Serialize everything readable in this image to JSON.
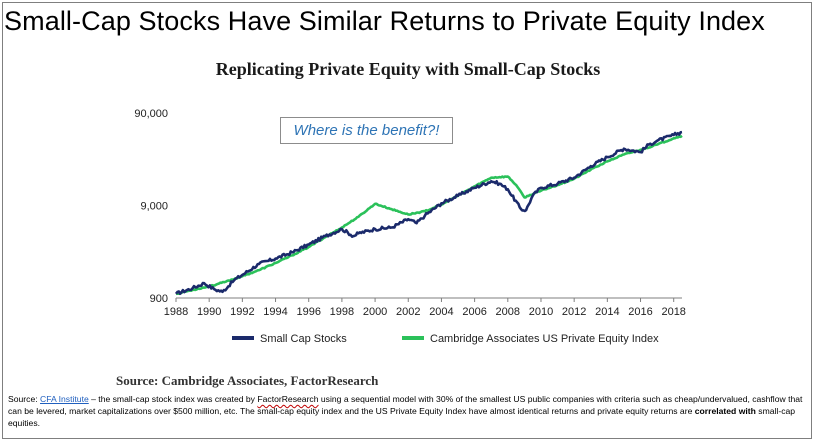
{
  "slide": {
    "title": "Small-Cap Stocks Have Similar Returns to Private Equity Index"
  },
  "callout": {
    "text": "Where is the benefit?!"
  },
  "source_line": "Source: Cambridge Associates, FactorResearch",
  "footnote": {
    "prefix": "Source: ",
    "link_text": "CFA Institute",
    "part1": " – the small-cap stock index was created by ",
    "factor_research": "FactorResearch",
    "part2": " using a sequential model with 30% of the smallest US public companies with criteria such as cheap/undervalued, cashflow that can be levered, market capitalizations over $500 million, etc. The small-cap equity index and the US Private Equity Index have almost identical returns and private equity returns are ",
    "bold_text": "correlated with",
    "part3": " small-cap equities."
  },
  "colors": {
    "small_cap": "#1b2a6b",
    "private_equity": "#2bc15a",
    "callout_text": "#2e74b5"
  },
  "chart_data": {
    "type": "line",
    "title": "Replicating Private Equity with Small-Cap Stocks",
    "xlabel": "",
    "ylabel": "",
    "y_scale": "log",
    "ylim": [
      900,
      90000
    ],
    "xlim": [
      1988,
      2018.5
    ],
    "y_ticks": [
      900,
      9000,
      90000
    ],
    "y_tick_labels": [
      "900",
      "9,000",
      "90,000"
    ],
    "x_ticks": [
      1988,
      1990,
      1992,
      1994,
      1996,
      1998,
      2000,
      2002,
      2004,
      2006,
      2008,
      2010,
      2012,
      2014,
      2016,
      2018
    ],
    "x_tick_labels": [
      "1988",
      "1990",
      "1992",
      "1994",
      "1996",
      "1998",
      "2000",
      "2002",
      "2004",
      "2006",
      "2008",
      "2010",
      "2012",
      "2014",
      "2016",
      "2018"
    ],
    "grid": false,
    "legend_position": "bottom",
    "series": [
      {
        "name": "Small Cap Stocks",
        "x": [
          1988,
          1989,
          1989.7,
          1990.3,
          1990.8,
          1991.5,
          1992,
          1993,
          1994,
          1995,
          1996,
          1997,
          1998,
          1998.7,
          1999,
          2000,
          2001,
          2002,
          2002.5,
          2003,
          2004,
          2005,
          2006,
          2007,
          2007.5,
          2008,
          2008.8,
          2009.1,
          2009.5,
          2010,
          2011,
          2012,
          2013,
          2014,
          2015,
          2016,
          2016.5,
          2017,
          2018,
          2018.5
        ],
        "values": [
          1000,
          1150,
          1300,
          1120,
          1050,
          1400,
          1600,
          2100,
          2400,
          2800,
          3400,
          4200,
          5000,
          4200,
          4500,
          5000,
          5200,
          6400,
          5800,
          7000,
          9500,
          11500,
          14000,
          16500,
          15500,
          13500,
          8200,
          8000,
          11500,
          14000,
          15500,
          18000,
          24000,
          30000,
          37000,
          34000,
          41000,
          45000,
          52000,
          56000
        ]
      },
      {
        "name": "Cambridge Associates US Private Equity Index",
        "x": [
          1988,
          1989,
          1990,
          1991,
          1992,
          1993,
          1994,
          1995,
          1996,
          1997,
          1998,
          1999,
          2000,
          2001,
          2002,
          2003,
          2004,
          2005,
          2006,
          2007,
          2008,
          2008.5,
          2009,
          2010,
          2011,
          2012,
          2013,
          2014,
          2015,
          2016,
          2017,
          2018,
          2018.5
        ],
        "values": [
          1000,
          1100,
          1200,
          1350,
          1550,
          1800,
          2150,
          2600,
          3200,
          4100,
          5200,
          6800,
          9400,
          8200,
          7200,
          7800,
          9200,
          11500,
          14500,
          18000,
          18500,
          15000,
          11000,
          13000,
          15000,
          17500,
          22000,
          27000,
          32000,
          36000,
          41000,
          48000,
          51000
        ]
      }
    ]
  }
}
